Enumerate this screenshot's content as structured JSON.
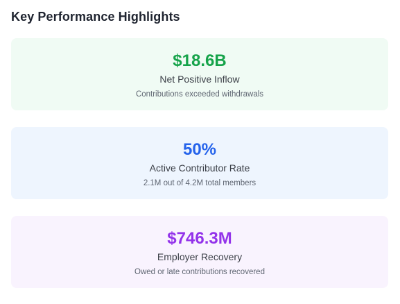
{
  "heading": "Key Performance Highlights",
  "colors": {
    "green": "#16a34a",
    "blue": "#2563eb",
    "purple": "#9333ea",
    "green_bg": "#f0fbf4",
    "blue_bg": "#eef5fe",
    "purple_bg": "#f9f3fe"
  },
  "cards": [
    {
      "value": "$18.6B",
      "label": "Net Positive Inflow",
      "description": "Contributions exceeded withdrawals"
    },
    {
      "value": "50%",
      "label": "Active Contributor Rate",
      "description": "2.1M out of 4.2M total members"
    },
    {
      "value": "$746.3M",
      "label": "Employer Recovery",
      "description": "Owed or late contributions recovered"
    }
  ]
}
